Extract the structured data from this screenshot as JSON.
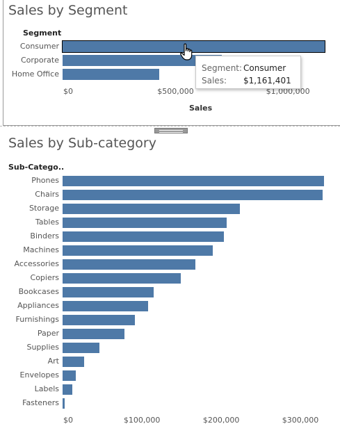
{
  "colors": {
    "bar": "#4e79a7",
    "selected_outline": "#000000"
  },
  "segment_chart": {
    "title": "Sales by Segment",
    "dimension_header": "Segment",
    "axis_title": "Sales",
    "ticks": [
      "$0",
      "$500,000",
      "$1,000,000"
    ],
    "tooltip": {
      "segment_key": "Segment:",
      "segment_value": "Consumer",
      "sales_key": "Sales:",
      "sales_value": "$1,161,401"
    }
  },
  "subcategory_chart": {
    "title": "Sales by Sub-category",
    "dimension_header": "Sub-Catego..",
    "ticks": [
      "$0",
      "$100,000",
      "$200,000",
      "$300,000"
    ]
  },
  "chart_data": [
    {
      "type": "bar",
      "orientation": "horizontal",
      "title": "Sales by Segment",
      "xlabel": "Sales",
      "ylabel": "Segment",
      "categories": [
        "Consumer",
        "Corporate",
        "Home Office"
      ],
      "values": [
        1161401,
        706146,
        429653
      ],
      "xlim": [
        0,
        1161401
      ],
      "x_ticks": [
        0,
        500000,
        1000000
      ],
      "highlighted": "Consumer",
      "grid": false
    },
    {
      "type": "bar",
      "orientation": "horizontal",
      "title": "Sales by Sub-category",
      "ylabel": "Sub-Catego..",
      "categories": [
        "Phones",
        "Chairs",
        "Storage",
        "Tables",
        "Binders",
        "Machines",
        "Accessories",
        "Copiers",
        "Bookcases",
        "Appliances",
        "Furnishings",
        "Paper",
        "Supplies",
        "Art",
        "Envelopes",
        "Labels",
        "Fasteners"
      ],
      "values": [
        330007,
        328449,
        223844,
        206966,
        203413,
        189239,
        167380,
        149528,
        114880,
        107532,
        91705,
        78479,
        46674,
        27119,
        16476,
        12486,
        3024
      ],
      "xlim": [
        0,
        330007
      ],
      "x_ticks": [
        0,
        100000,
        200000,
        300000
      ],
      "grid": false
    }
  ]
}
